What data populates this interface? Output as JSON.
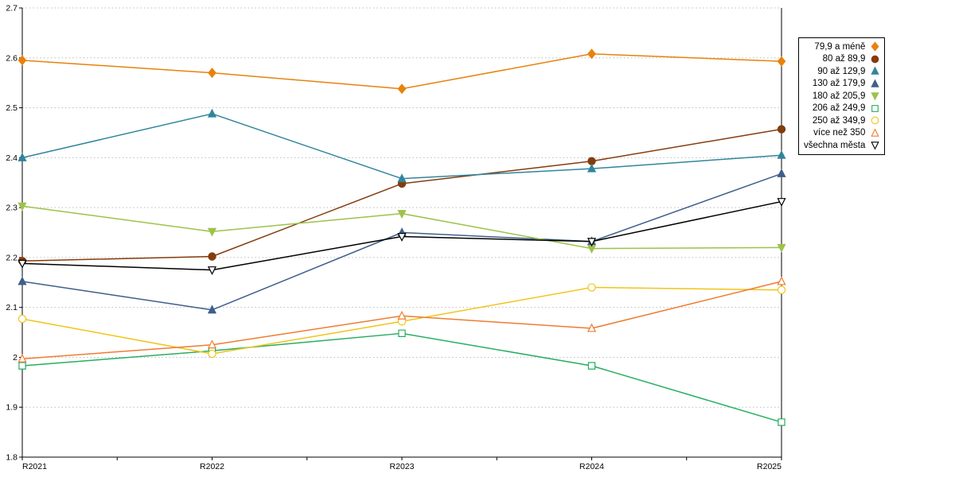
{
  "chart_data": {
    "type": "line",
    "title": "",
    "xlabel": "",
    "ylabel": "",
    "ylim": [
      1.8,
      2.7
    ],
    "ytick_step": 0.1,
    "grid": "horizontal-dotted",
    "legend_position": "right-outside",
    "categories": [
      "R2021",
      "R2022",
      "R2023",
      "R2024",
      "R2025"
    ],
    "series": [
      {
        "name": "79,9 a méně",
        "marker": "diamond",
        "filled": true,
        "color": "#E8820C",
        "values": [
          2.595,
          2.57,
          2.538,
          2.608,
          2.593
        ]
      },
      {
        "name": "80 až 89,9",
        "marker": "circle",
        "filled": true,
        "color": "#843C0C",
        "values": [
          2.193,
          2.202,
          2.348,
          2.393,
          2.457
        ]
      },
      {
        "name": "90 až 129,9",
        "marker": "triangle-up",
        "filled": true,
        "color": "#31859B",
        "values": [
          2.4,
          2.488,
          2.358,
          2.378,
          2.405
        ]
      },
      {
        "name": "130 až 179,9",
        "marker": "triangle-up",
        "filled": true,
        "color": "#3E5F8A",
        "values": [
          2.152,
          2.095,
          2.25,
          2.232,
          2.368
        ]
      },
      {
        "name": "180 až 205,9",
        "marker": "triangle-down",
        "filled": true,
        "color": "#9DC24B",
        "values": [
          2.303,
          2.252,
          2.288,
          2.218,
          2.22
        ]
      },
      {
        "name": "206 až 249,9",
        "marker": "square",
        "filled": false,
        "color": "#27AE60",
        "values": [
          1.983,
          2.013,
          2.048,
          1.983,
          1.87
        ]
      },
      {
        "name": "250 až 349,9",
        "marker": "circle",
        "filled": false,
        "color": "#F0C419",
        "values": [
          2.077,
          2.007,
          2.072,
          2.14,
          2.135
        ]
      },
      {
        "name": "více než 350",
        "marker": "triangle-up",
        "filled": false,
        "color": "#ED7D31",
        "values": [
          1.997,
          2.025,
          2.083,
          2.058,
          2.152
        ]
      },
      {
        "name": "všechna města",
        "marker": "triangle-down",
        "filled": false,
        "color": "#000000",
        "values": [
          2.188,
          2.175,
          2.242,
          2.232,
          2.312
        ]
      }
    ]
  }
}
